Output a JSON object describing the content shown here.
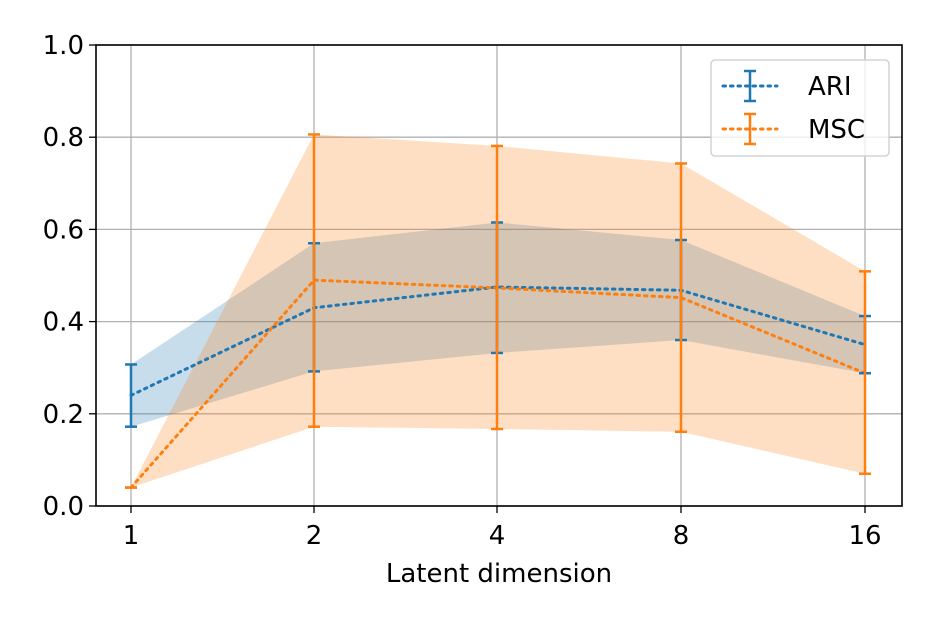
{
  "chart_data": {
    "type": "line",
    "title": "",
    "xlabel": "Latent dimension",
    "ylabel": "",
    "categories": [
      "1",
      "2",
      "4",
      "8",
      "16"
    ],
    "ylim": [
      0.0,
      1.0
    ],
    "yticks": [
      "0.0",
      "0.2",
      "0.4",
      "0.6",
      "0.8",
      "1.0"
    ],
    "grid": true,
    "legend_position": "top-right",
    "series": [
      {
        "name": "ARI",
        "color": "#1f77b4",
        "mean": [
          0.24,
          0.43,
          0.475,
          0.468,
          0.35
        ],
        "lower": [
          0.172,
          0.292,
          0.332,
          0.36,
          0.288
        ],
        "upper": [
          0.307,
          0.57,
          0.615,
          0.577,
          0.412
        ]
      },
      {
        "name": "MSC",
        "color": "#ff7f0e",
        "mean": [
          0.04,
          0.49,
          0.473,
          0.452,
          0.288
        ],
        "lower": [
          0.04,
          0.172,
          0.167,
          0.161,
          0.07
        ],
        "upper": [
          0.04,
          0.806,
          0.781,
          0.743,
          0.509
        ]
      }
    ]
  }
}
